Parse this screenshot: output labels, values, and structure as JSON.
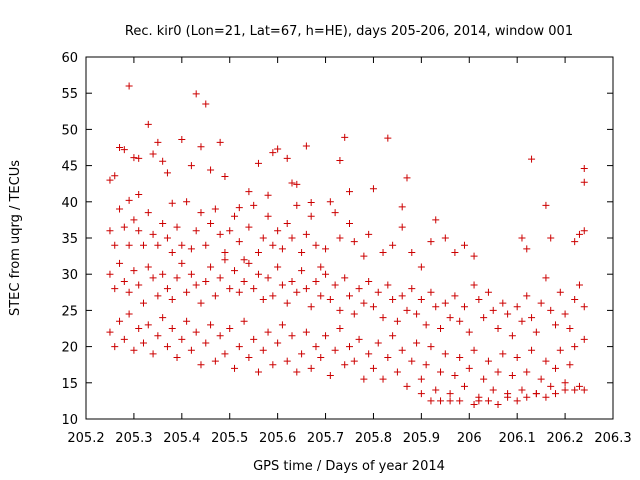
{
  "chart_data": {
    "type": "scatter",
    "title": "Rec. kir0 (Lon=21, Lat=67, h=HE), days 205-206, 2014, window 001",
    "xlabel": "GPS time / Days of year 2014",
    "ylabel": "STEC from uqrg / TECUs",
    "xlim": [
      205.2,
      206.3
    ],
    "ylim": [
      10,
      60
    ],
    "xticks": [
      "205.2",
      "205.3",
      "205.4",
      "205.5",
      "205.6",
      "205.7",
      "205.8",
      "205.9",
      "206",
      "206.1",
      "206.2",
      "206.3"
    ],
    "yticks": [
      "10",
      "15",
      "20",
      "25",
      "30",
      "35",
      "40",
      "45",
      "50",
      "55",
      "60"
    ],
    "grid": false,
    "marker": "+",
    "color": "#cc0000",
    "points": [
      [
        205.25,
        43.0
      ],
      [
        205.26,
        43.6
      ],
      [
        205.27,
        47.5
      ],
      [
        205.28,
        47.2
      ],
      [
        205.29,
        56.0
      ],
      [
        205.29,
        40.2
      ],
      [
        205.3,
        46.1
      ],
      [
        205.31,
        46.0
      ],
      [
        205.31,
        41.0
      ],
      [
        205.33,
        50.7
      ],
      [
        205.34,
        46.6
      ],
      [
        205.35,
        48.2
      ],
      [
        205.36,
        45.6
      ],
      [
        205.37,
        44.0
      ],
      [
        205.38,
        39.8
      ],
      [
        205.4,
        48.6
      ],
      [
        205.42,
        45.0
      ],
      [
        205.43,
        54.9
      ],
      [
        205.44,
        47.6
      ],
      [
        205.45,
        53.5
      ],
      [
        205.46,
        44.4
      ],
      [
        205.48,
        48.2
      ],
      [
        205.49,
        43.5
      ],
      [
        205.52,
        39.2
      ],
      [
        205.54,
        41.4
      ],
      [
        205.56,
        45.3
      ],
      [
        205.58,
        40.9
      ],
      [
        205.59,
        46.8
      ],
      [
        205.6,
        47.3
      ],
      [
        205.62,
        46.0
      ],
      [
        205.63,
        42.6
      ],
      [
        205.64,
        42.4
      ],
      [
        205.66,
        47.7
      ],
      [
        205.67,
        39.9
      ],
      [
        205.71,
        40.0
      ],
      [
        205.73,
        45.7
      ],
      [
        205.74,
        48.9
      ],
      [
        205.75,
        41.4
      ],
      [
        205.8,
        41.8
      ],
      [
        205.83,
        48.8
      ],
      [
        205.87,
        43.3
      ],
      [
        205.86,
        39.3
      ],
      [
        205.93,
        37.5
      ],
      [
        206.13,
        45.9
      ],
      [
        206.16,
        39.5
      ],
      [
        206.24,
        44.6
      ],
      [
        206.24,
        42.7
      ],
      [
        205.25,
        36.0
      ],
      [
        205.26,
        34.0
      ],
      [
        205.27,
        39.0
      ],
      [
        205.28,
        36.5
      ],
      [
        205.29,
        34.0
      ],
      [
        205.3,
        37.5
      ],
      [
        205.31,
        36.0
      ],
      [
        205.32,
        34.0
      ],
      [
        205.33,
        38.5
      ],
      [
        205.34,
        35.5
      ],
      [
        205.35,
        34.0
      ],
      [
        205.36,
        37.0
      ],
      [
        205.37,
        35.0
      ],
      [
        205.38,
        33.0
      ],
      [
        205.39,
        36.5
      ],
      [
        205.4,
        34.0
      ],
      [
        205.41,
        40.0
      ],
      [
        205.42,
        33.5
      ],
      [
        205.43,
        36.0
      ],
      [
        205.44,
        38.5
      ],
      [
        205.45,
        34.0
      ],
      [
        205.46,
        37.0
      ],
      [
        205.47,
        39.0
      ],
      [
        205.48,
        35.5
      ],
      [
        205.49,
        33.0
      ],
      [
        205.5,
        36.0
      ],
      [
        205.51,
        38.0
      ],
      [
        205.52,
        34.5
      ],
      [
        205.53,
        32.0
      ],
      [
        205.54,
        36.5
      ],
      [
        205.55,
        39.5
      ],
      [
        205.56,
        33.0
      ],
      [
        205.57,
        35.0
      ],
      [
        205.58,
        38.0
      ],
      [
        205.59,
        34.0
      ],
      [
        205.6,
        36.0
      ],
      [
        205.61,
        33.5
      ],
      [
        205.62,
        37.0
      ],
      [
        205.63,
        35.0
      ],
      [
        205.64,
        39.5
      ],
      [
        205.65,
        33.0
      ],
      [
        205.66,
        35.5
      ],
      [
        205.67,
        38.0
      ],
      [
        205.68,
        34.0
      ],
      [
        205.69,
        31.0
      ],
      [
        205.7,
        33.5
      ],
      [
        205.72,
        38.5
      ],
      [
        205.73,
        35.0
      ],
      [
        205.75,
        37.0
      ],
      [
        205.76,
        34.5
      ],
      [
        205.78,
        32.5
      ],
      [
        205.79,
        35.5
      ],
      [
        205.82,
        33.0
      ],
      [
        205.84,
        34.0
      ],
      [
        205.86,
        36.5
      ],
      [
        205.88,
        33.0
      ],
      [
        205.9,
        31.0
      ],
      [
        205.92,
        34.5
      ],
      [
        205.95,
        35.0
      ],
      [
        205.97,
        33.0
      ],
      [
        205.99,
        34.0
      ],
      [
        206.01,
        32.5
      ],
      [
        206.11,
        35.0
      ],
      [
        206.12,
        33.5
      ],
      [
        206.17,
        35.0
      ],
      [
        206.22,
        34.5
      ],
      [
        206.23,
        35.5
      ],
      [
        206.24,
        36.0
      ],
      [
        205.25,
        30.0
      ],
      [
        205.26,
        28.0
      ],
      [
        205.27,
        31.5
      ],
      [
        205.28,
        29.0
      ],
      [
        205.29,
        27.5
      ],
      [
        205.3,
        30.5
      ],
      [
        205.31,
        28.5
      ],
      [
        205.32,
        26.0
      ],
      [
        205.33,
        31.0
      ],
      [
        205.34,
        29.5
      ],
      [
        205.35,
        27.0
      ],
      [
        205.36,
        30.0
      ],
      [
        205.37,
        28.0
      ],
      [
        205.38,
        26.5
      ],
      [
        205.39,
        29.5
      ],
      [
        205.4,
        31.5
      ],
      [
        205.41,
        27.5
      ],
      [
        205.42,
        30.0
      ],
      [
        205.43,
        28.5
      ],
      [
        205.44,
        26.0
      ],
      [
        205.45,
        29.0
      ],
      [
        205.46,
        31.0
      ],
      [
        205.47,
        27.0
      ],
      [
        205.48,
        29.5
      ],
      [
        205.49,
        32.0
      ],
      [
        205.5,
        28.0
      ],
      [
        205.51,
        30.5
      ],
      [
        205.52,
        27.5
      ],
      [
        205.53,
        29.0
      ],
      [
        205.54,
        31.5
      ],
      [
        205.55,
        28.0
      ],
      [
        205.56,
        30.0
      ],
      [
        205.57,
        26.5
      ],
      [
        205.58,
        29.5
      ],
      [
        205.59,
        27.0
      ],
      [
        205.6,
        31.0
      ],
      [
        205.61,
        28.5
      ],
      [
        205.62,
        26.0
      ],
      [
        205.63,
        29.0
      ],
      [
        205.64,
        27.5
      ],
      [
        205.65,
        30.5
      ],
      [
        205.66,
        28.0
      ],
      [
        205.67,
        25.5
      ],
      [
        205.68,
        29.0
      ],
      [
        205.69,
        27.0
      ],
      [
        205.7,
        30.0
      ],
      [
        205.71,
        26.5
      ],
      [
        205.72,
        28.5
      ],
      [
        205.73,
        25.0
      ],
      [
        205.74,
        29.5
      ],
      [
        205.75,
        27.0
      ],
      [
        205.76,
        24.5
      ],
      [
        205.77,
        28.0
      ],
      [
        205.78,
        26.0
      ],
      [
        205.79,
        29.0
      ],
      [
        205.8,
        25.5
      ],
      [
        205.81,
        27.5
      ],
      [
        205.82,
        24.0
      ],
      [
        205.83,
        28.5
      ],
      [
        205.84,
        26.5
      ],
      [
        205.85,
        23.5
      ],
      [
        205.86,
        27.0
      ],
      [
        205.87,
        25.0
      ],
      [
        205.88,
        28.0
      ],
      [
        205.89,
        24.5
      ],
      [
        205.9,
        26.5
      ],
      [
        205.91,
        23.0
      ],
      [
        205.92,
        27.5
      ],
      [
        205.93,
        25.5
      ],
      [
        205.94,
        22.5
      ],
      [
        205.95,
        26.0
      ],
      [
        205.96,
        24.0
      ],
      [
        205.97,
        27.0
      ],
      [
        205.98,
        23.5
      ],
      [
        205.99,
        25.5
      ],
      [
        206.0,
        22.0
      ],
      [
        206.01,
        28.5
      ],
      [
        206.02,
        26.5
      ],
      [
        206.03,
        24.0
      ],
      [
        206.04,
        27.5
      ],
      [
        206.05,
        25.0
      ],
      [
        206.06,
        22.5
      ],
      [
        206.07,
        26.0
      ],
      [
        206.08,
        24.5
      ],
      [
        206.09,
        21.5
      ],
      [
        206.1,
        25.5
      ],
      [
        206.11,
        23.5
      ],
      [
        206.12,
        27.0
      ],
      [
        206.13,
        24.0
      ],
      [
        206.14,
        22.0
      ],
      [
        206.15,
        26.0
      ],
      [
        206.16,
        29.5
      ],
      [
        206.17,
        25.0
      ],
      [
        206.18,
        23.0
      ],
      [
        206.19,
        27.5
      ],
      [
        206.2,
        24.5
      ],
      [
        206.21,
        22.5
      ],
      [
        206.22,
        26.5
      ],
      [
        206.23,
        28.5
      ],
      [
        206.24,
        25.5
      ],
      [
        205.25,
        22.0
      ],
      [
        205.26,
        20.0
      ],
      [
        205.27,
        23.5
      ],
      [
        205.28,
        21.0
      ],
      [
        205.29,
        24.5
      ],
      [
        205.3,
        19.5
      ],
      [
        205.31,
        22.5
      ],
      [
        205.32,
        20.5
      ],
      [
        205.33,
        23.0
      ],
      [
        205.34,
        19.0
      ],
      [
        205.35,
        21.5
      ],
      [
        205.36,
        24.0
      ],
      [
        205.37,
        20.0
      ],
      [
        205.38,
        22.5
      ],
      [
        205.39,
        18.5
      ],
      [
        205.4,
        21.0
      ],
      [
        205.41,
        23.5
      ],
      [
        205.42,
        19.5
      ],
      [
        205.43,
        22.0
      ],
      [
        205.44,
        17.5
      ],
      [
        205.45,
        20.5
      ],
      [
        205.46,
        23.0
      ],
      [
        205.47,
        18.0
      ],
      [
        205.48,
        21.5
      ],
      [
        205.49,
        19.0
      ],
      [
        205.5,
        22.5
      ],
      [
        205.51,
        17.0
      ],
      [
        205.52,
        20.0
      ],
      [
        205.53,
        23.5
      ],
      [
        205.54,
        18.5
      ],
      [
        205.55,
        21.0
      ],
      [
        205.56,
        16.5
      ],
      [
        205.57,
        19.5
      ],
      [
        205.58,
        22.0
      ],
      [
        205.59,
        17.5
      ],
      [
        205.6,
        20.5
      ],
      [
        205.61,
        23.0
      ],
      [
        205.62,
        18.0
      ],
      [
        205.63,
        21.5
      ],
      [
        205.64,
        16.5
      ],
      [
        205.65,
        19.0
      ],
      [
        205.66,
        22.0
      ],
      [
        205.67,
        17.0
      ],
      [
        205.68,
        20.0
      ],
      [
        205.69,
        18.5
      ],
      [
        205.7,
        21.5
      ],
      [
        205.71,
        16.0
      ],
      [
        205.72,
        19.5
      ],
      [
        205.73,
        22.5
      ],
      [
        205.74,
        17.5
      ],
      [
        205.75,
        20.0
      ],
      [
        205.76,
        18.0
      ],
      [
        205.77,
        21.0
      ],
      [
        205.78,
        15.5
      ],
      [
        205.79,
        19.0
      ],
      [
        205.8,
        17.0
      ],
      [
        205.81,
        20.5
      ],
      [
        205.82,
        15.5
      ],
      [
        205.83,
        18.5
      ],
      [
        205.84,
        21.5
      ],
      [
        205.85,
        16.5
      ],
      [
        205.86,
        19.5
      ],
      [
        205.87,
        14.5
      ],
      [
        205.88,
        18.0
      ],
      [
        205.89,
        20.5
      ],
      [
        205.9,
        15.5
      ],
      [
        205.91,
        17.5
      ],
      [
        205.92,
        20.0
      ],
      [
        205.93,
        14.0
      ],
      [
        205.94,
        16.5
      ],
      [
        205.95,
        19.0
      ],
      [
        205.96,
        13.5
      ],
      [
        205.97,
        16.0
      ],
      [
        205.98,
        18.5
      ],
      [
        205.99,
        14.5
      ],
      [
        206.0,
        17.0
      ],
      [
        206.01,
        19.5
      ],
      [
        206.02,
        13.0
      ],
      [
        206.03,
        15.5
      ],
      [
        206.04,
        18.0
      ],
      [
        206.05,
        14.0
      ],
      [
        206.06,
        16.5
      ],
      [
        206.07,
        19.0
      ],
      [
        206.08,
        13.5
      ],
      [
        206.09,
        16.0
      ],
      [
        206.1,
        18.5
      ],
      [
        206.11,
        14.0
      ],
      [
        206.12,
        16.5
      ],
      [
        206.13,
        19.5
      ],
      [
        206.14,
        13.5
      ],
      [
        206.15,
        15.5
      ],
      [
        206.16,
        18.0
      ],
      [
        206.17,
        14.5
      ],
      [
        206.18,
        17.0
      ],
      [
        206.19,
        19.5
      ],
      [
        206.2,
        15.0
      ],
      [
        206.21,
        17.5
      ],
      [
        206.22,
        20.0
      ],
      [
        206.23,
        14.5
      ],
      [
        206.24,
        21.0
      ],
      [
        205.96,
        12.5
      ],
      [
        205.98,
        12.5
      ],
      [
        206.01,
        12.0
      ],
      [
        206.02,
        12.5
      ],
      [
        206.04,
        12.5
      ],
      [
        206.06,
        12.0
      ],
      [
        206.08,
        13.0
      ],
      [
        206.1,
        12.5
      ],
      [
        206.12,
        13.0
      ],
      [
        206.14,
        13.5
      ],
      [
        206.16,
        13.0
      ],
      [
        206.18,
        13.5
      ],
      [
        206.2,
        14.0
      ],
      [
        206.22,
        14.0
      ],
      [
        206.24,
        14.0
      ],
      [
        205.9,
        13.5
      ],
      [
        205.92,
        12.5
      ],
      [
        205.94,
        12.5
      ]
    ]
  }
}
